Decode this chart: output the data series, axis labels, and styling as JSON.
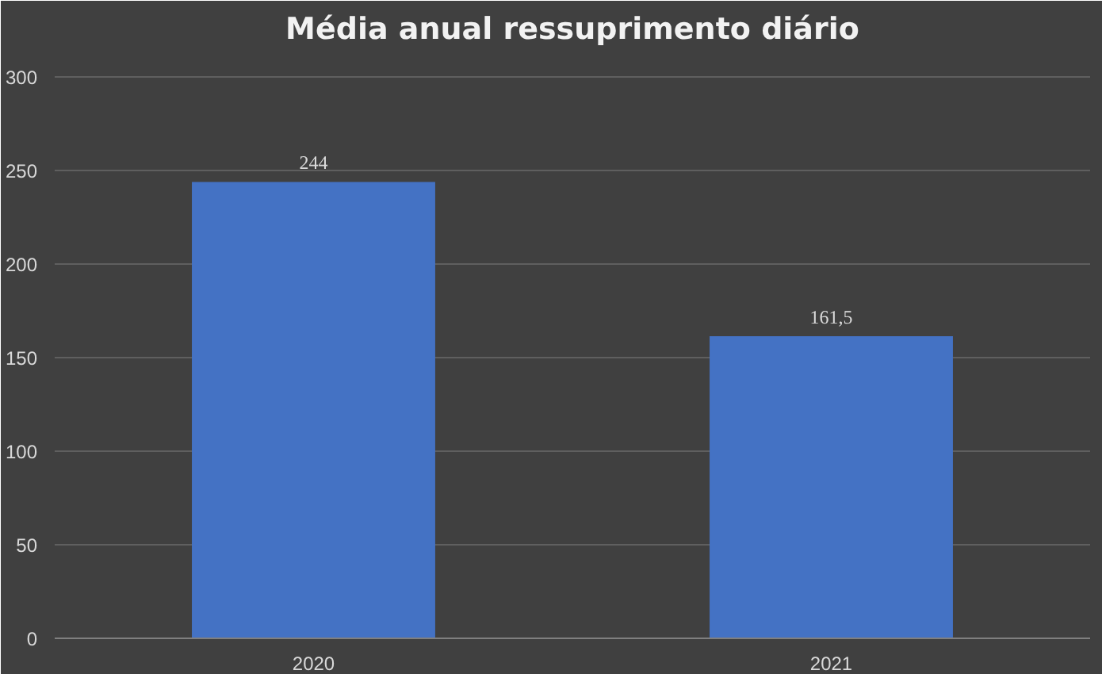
{
  "chart_data": {
    "type": "bar",
    "title": "Média anual ressuprimento diário",
    "categories": [
      "2020",
      "2021"
    ],
    "values": [
      244,
      161.5
    ],
    "value_labels": [
      "244",
      "161,5"
    ],
    "color": "#4472c4",
    "ylim": [
      0,
      300
    ],
    "yticks": [
      0,
      50,
      100,
      150,
      200,
      250,
      300
    ],
    "grid": "y"
  }
}
